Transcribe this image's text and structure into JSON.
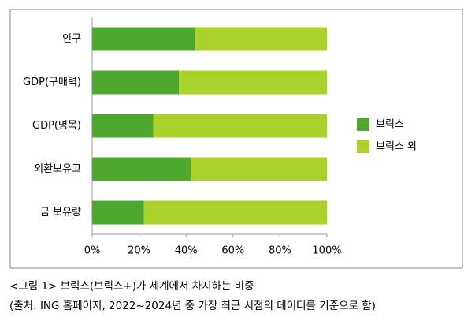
{
  "chart_data": {
    "type": "stacked-barh",
    "categories": [
      "인구",
      "GDP(구매력)",
      "GDP(명목)",
      "외환보유고",
      "금 보유량"
    ],
    "series": [
      {
        "name": "브릭스",
        "color": "#4ea72e",
        "values": [
          44,
          37,
          26,
          42,
          22
        ]
      },
      {
        "name": "브릭스 외",
        "color": "#a9d22a",
        "values": [
          56,
          63,
          74,
          58,
          78
        ]
      }
    ],
    "xlim": [
      0,
      100
    ],
    "xticks": [
      {
        "value": 0,
        "label": "0%"
      },
      {
        "value": 20,
        "label": "20%"
      },
      {
        "value": 40,
        "label": "40%"
      },
      {
        "value": 60,
        "label": "60%"
      },
      {
        "value": 80,
        "label": "80%"
      },
      {
        "value": 100,
        "label": "100%"
      }
    ],
    "legend": "right"
  },
  "caption": [
    "<그림 1> 브릭스(브릭스+)가 세계에서 차지하는 비중",
    "(출처: ING 홈페이지, 2022~2024년 중 가장 최근 시점의 데이터를 기준으로 함)"
  ]
}
